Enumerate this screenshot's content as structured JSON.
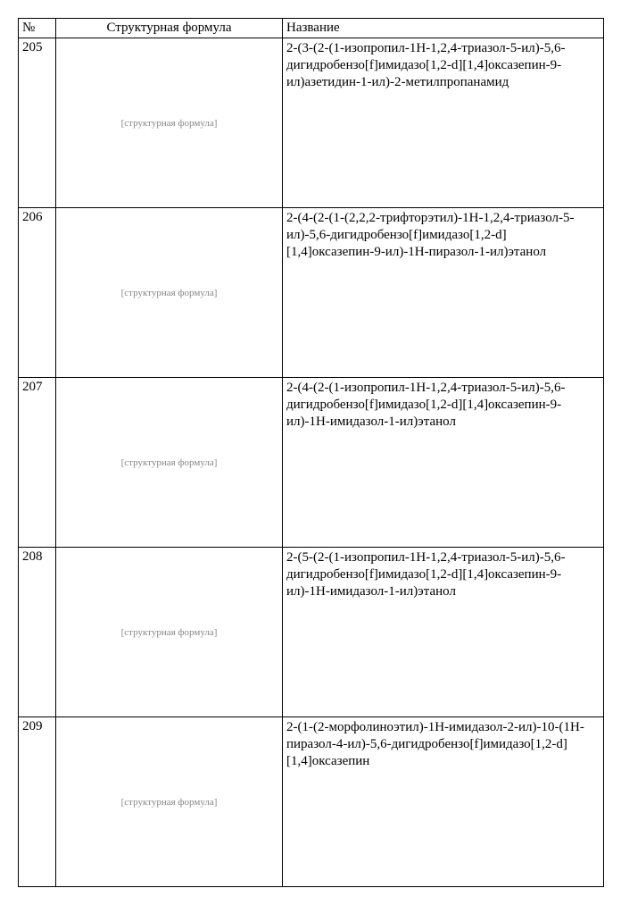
{
  "headers": {
    "num": "№",
    "struct": "Структурная формула",
    "name": "Название"
  },
  "struct_placeholder": "[структурная формула]",
  "rows": [
    {
      "num": "205",
      "name": "2-(3-(2-(1-изопропил-1H-1,2,4-триазол-5-ил)-5,6-дигидробензо[f]имидазо[1,2-d][1,4]оксазепин-9-ил)азетидин-1-ил)-2-метилпропанамид"
    },
    {
      "num": "206",
      "name": "2-(4-(2-(1-(2,2,2-трифторэтил)-1H-1,2,4-триазол-5-ил)-5,6-дигидробензо[f]имидазо[1,2-d][1,4]оксазепин-9-ил)-1H-пиразол-1-ил)этанол"
    },
    {
      "num": "207",
      "name": "2-(4-(2-(1-изопропил-1H-1,2,4-триазол-5-ил)-5,6-дигидробензо[f]имидазо[1,2-d][1,4]оксазепин-9-ил)-1H-имидазол-1-ил)этанол"
    },
    {
      "num": "208",
      "name": "2-(5-(2-(1-изопропил-1H-1,2,4-триазол-5-ил)-5,6-дигидробензо[f]имидазо[1,2-d][1,4]оксазепин-9-ил)-1H-имидазол-1-ил)этанол"
    },
    {
      "num": "209",
      "name": "2-(1-(2-морфолиноэтил)-1H-имидазол-2-ил)-10-(1H-пиразол-4-ил)-5,6-дигидробензо[f]имидазо[1,2-d][1,4]оксазепин"
    }
  ]
}
